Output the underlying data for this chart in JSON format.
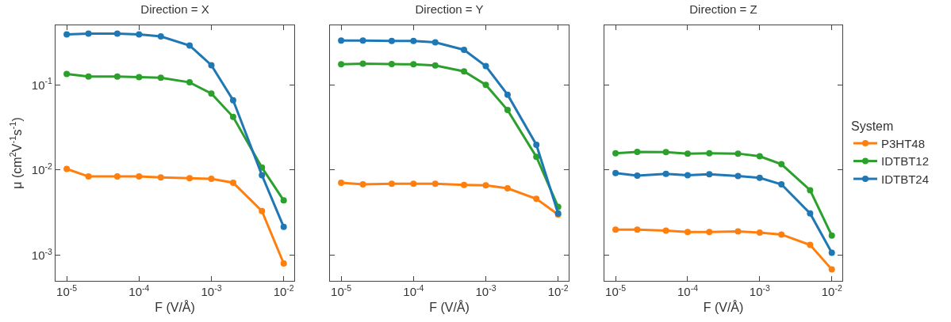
{
  "chart_data": [
    {
      "type": "line",
      "title": "Direction = X",
      "xlabel": "F (V/Å)",
      "ylabel": "μ (cm$^{2}$V$^{-1}$s$^{-1}$)",
      "log": "xy",
      "marker": "circle",
      "line_style": "solid",
      "grid": false,
      "legend": false,
      "x": [
        1e-05,
        2e-05,
        5e-05,
        0.0001,
        0.0002,
        0.0005,
        0.001,
        0.002,
        0.005,
        0.01
      ],
      "xlim": [
        7e-06,
        0.014
      ],
      "xticks": [
        {
          "value": 1e-05,
          "label": "10$^{-5}$"
        },
        {
          "value": 0.0001,
          "label": "10$^{-4}$"
        },
        {
          "value": 0.001,
          "label": "10$^{-3}$"
        },
        {
          "value": 0.01,
          "label": "10$^{-2}$"
        }
      ],
      "ylim": [
        0.0005,
        0.5
      ],
      "yticks": [
        {
          "value": 0.001,
          "label": "10$^{-3}$"
        },
        {
          "value": 0.01,
          "label": "10$^{-2}$"
        },
        {
          "value": 0.1,
          "label": "10$^{-1}$"
        }
      ],
      "series": [
        {
          "color": "#ff7f0e",
          "values": [
            0.0103,
            0.0084,
            0.0084,
            0.0084,
            0.0082,
            0.008,
            0.0079,
            0.0071,
            0.0033,
            0.0008
          ]
        },
        {
          "color": "#2ca02c",
          "values": [
            0.134,
            0.125,
            0.125,
            0.123,
            0.121,
            0.107,
            0.079,
            0.042,
            0.0107,
            0.0044
          ]
        },
        {
          "color": "#1f77b4",
          "values": [
            0.39,
            0.4,
            0.4,
            0.39,
            0.37,
            0.29,
            0.17,
            0.066,
            0.0087,
            0.00215
          ]
        }
      ]
    },
    {
      "type": "line",
      "title": "Direction = Y",
      "xlabel": "F (V/Å)",
      "log": "xy",
      "marker": "circle",
      "line_style": "solid",
      "grid": false,
      "legend": false,
      "tick_labels": "x",
      "x": [
        1e-05,
        2e-05,
        5e-05,
        0.0001,
        0.0002,
        0.0005,
        0.001,
        0.002,
        0.005,
        0.01
      ],
      "xlim": [
        7e-06,
        0.014
      ],
      "xticks": [
        {
          "value": 1e-05,
          "label": "10$^{-5}$"
        },
        {
          "value": 0.0001,
          "label": "10$^{-4}$"
        },
        {
          "value": 0.001,
          "label": "10$^{-3}$"
        },
        {
          "value": 0.01,
          "label": "10$^{-2}$"
        }
      ],
      "ylim": [
        0.0005,
        0.5
      ],
      "yticks": [
        {
          "value": 0.001,
          "label": null
        },
        {
          "value": 0.01,
          "label": null
        },
        {
          "value": 0.1,
          "label": null
        }
      ],
      "series": [
        {
          "color": "#ff7f0e",
          "values": [
            0.0071,
            0.0068,
            0.0069,
            0.0069,
            0.0069,
            0.0067,
            0.0066,
            0.0061,
            0.0046,
            0.003
          ]
        },
        {
          "color": "#2ca02c",
          "values": [
            0.174,
            0.177,
            0.175,
            0.174,
            0.169,
            0.144,
            0.1,
            0.0506,
            0.0143,
            0.0037
          ]
        },
        {
          "color": "#1f77b4",
          "values": [
            0.331,
            0.331,
            0.327,
            0.327,
            0.315,
            0.258,
            0.166,
            0.0767,
            0.0198,
            0.0031
          ]
        }
      ]
    },
    {
      "type": "line",
      "title": "Direction = Z",
      "xlabel": "F (V/Å)",
      "log": "xy",
      "marker": "circle",
      "line_style": "solid",
      "grid": false,
      "legend": "right",
      "legend_title": "System",
      "tick_labels": "x",
      "x": [
        1e-05,
        2e-05,
        5e-05,
        0.0001,
        0.0002,
        0.0005,
        0.001,
        0.002,
        0.005,
        0.01
      ],
      "xlim": [
        7e-06,
        0.014
      ],
      "xticks": [
        {
          "value": 1e-05,
          "label": "10$^{-5}$"
        },
        {
          "value": 0.0001,
          "label": "10$^{-4}$"
        },
        {
          "value": 0.001,
          "label": "10$^{-3}$"
        },
        {
          "value": 0.01,
          "label": "10$^{-2}$"
        }
      ],
      "ylim": [
        0.0005,
        0.5
      ],
      "yticks": [
        {
          "value": 0.001,
          "label": null
        },
        {
          "value": 0.01,
          "label": null
        },
        {
          "value": 0.1,
          "label": null
        }
      ],
      "series": [
        {
          "name": "P3HT48",
          "color": "#ff7f0e",
          "values": [
            0.002,
            0.002,
            0.00194,
            0.00187,
            0.00187,
            0.0019,
            0.00184,
            0.00175,
            0.00132,
            0.00068
          ]
        },
        {
          "name": "IDTBT12",
          "color": "#2ca02c",
          "values": [
            0.0157,
            0.0163,
            0.0162,
            0.0156,
            0.0157,
            0.0156,
            0.0145,
            0.0117,
            0.0058,
            0.0017
          ]
        },
        {
          "name": "IDTBT24",
          "color": "#1f77b4",
          "values": [
            0.0092,
            0.0086,
            0.009,
            0.0087,
            0.0089,
            0.0085,
            0.0081,
            0.0068,
            0.0031,
            0.00107
          ]
        }
      ]
    }
  ]
}
